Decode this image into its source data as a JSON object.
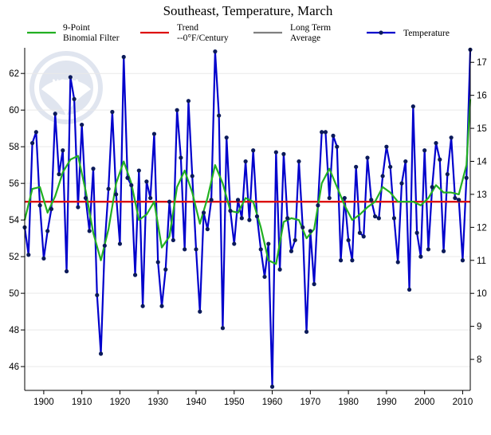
{
  "chart_data": {
    "type": "line",
    "title": "Southeast, Temperature, March",
    "xlabel": "",
    "ylabel": "",
    "xlim": [
      1895,
      2012
    ],
    "ylim": [
      44.7,
      63.4
    ],
    "y2lim": [
      7.06,
      17.44
    ],
    "x_ticks": [
      1900,
      1910,
      1920,
      1930,
      1940,
      1950,
      1960,
      1970,
      1980,
      1990,
      2000,
      2010
    ],
    "y_ticks": [
      46,
      48,
      50,
      52,
      54,
      56,
      58,
      60,
      62
    ],
    "y2_ticks": [
      8,
      9,
      10,
      11,
      12,
      13,
      14,
      15,
      16,
      17
    ],
    "legend": [
      {
        "label_line1": "9-Point",
        "label_line2": "Binomial Filter",
        "color": "#22b022"
      },
      {
        "label_line1": "Trend",
        "label_line2": "--0°F/Century",
        "color": "#dd1111"
      },
      {
        "label_line1": "Long Term",
        "label_line2": "Average",
        "color": "#808080"
      },
      {
        "label_line1": "Temperature",
        "label_line2": "",
        "color": "#0000cc"
      }
    ],
    "trend_value": 55.0,
    "long_term_average": 55.0,
    "series": [
      {
        "name": "Temperature",
        "color": "#0000cc",
        "x": [
          1895,
          1896,
          1897,
          1898,
          1899,
          1900,
          1901,
          1902,
          1903,
          1904,
          1905,
          1906,
          1907,
          1908,
          1909,
          1910,
          1911,
          1912,
          1913,
          1914,
          1915,
          1916,
          1917,
          1918,
          1919,
          1920,
          1921,
          1922,
          1923,
          1924,
          1925,
          1926,
          1927,
          1928,
          1929,
          1930,
          1931,
          1932,
          1933,
          1934,
          1935,
          1936,
          1937,
          1938,
          1939,
          1940,
          1941,
          1942,
          1943,
          1944,
          1945,
          1946,
          1947,
          1948,
          1949,
          1950,
          1951,
          1952,
          1953,
          1954,
          1955,
          1956,
          1957,
          1958,
          1959,
          1960,
          1961,
          1962,
          1963,
          1964,
          1965,
          1966,
          1967,
          1968,
          1969,
          1970,
          1971,
          1972,
          1973,
          1974,
          1975,
          1976,
          1977,
          1978,
          1979,
          1980,
          1981,
          1982,
          1983,
          1984,
          1985,
          1986,
          1987,
          1988,
          1989,
          1990,
          1991,
          1992,
          1993,
          1994,
          1995,
          1996,
          1997,
          1998,
          1999,
          2000,
          2001,
          2002,
          2003,
          2004,
          2005,
          2006,
          2007,
          2008,
          2009,
          2010,
          2011,
          2012
        ],
        "values": [
          53.6,
          52.1,
          58.2,
          58.8,
          54.8,
          51.9,
          53.4,
          54.6,
          59.8,
          56.5,
          57.8,
          51.2,
          61.8,
          60.6,
          54.7,
          59.2,
          55.2,
          53.4,
          56.8,
          49.9,
          46.7,
          52.6,
          55.7,
          59.9,
          55.4,
          52.7,
          62.9,
          56.3,
          55.9,
          51.0,
          56.7,
          49.3,
          56.1,
          55.2,
          58.7,
          51.7,
          49.3,
          51.3,
          55.0,
          52.9,
          60.0,
          57.4,
          52.4,
          60.5,
          56.4,
          52.4,
          49.0,
          54.4,
          53.5,
          55.1,
          63.2,
          59.7,
          48.1,
          58.5,
          54.5,
          52.7,
          55.1,
          54.1,
          57.2,
          54.0,
          57.8,
          54.2,
          52.4,
          50.9,
          52.7,
          44.9,
          57.7,
          51.3,
          57.6,
          54.1,
          52.3,
          52.9,
          57.2,
          53.6,
          47.9,
          53.4,
          50.5,
          54.8,
          58.8,
          58.8,
          55.2,
          58.6,
          58.0,
          51.8,
          55.2,
          52.9,
          51.8,
          56.9,
          53.3,
          53.1,
          57.4,
          55.1,
          54.2,
          54.1,
          56.4,
          58.0,
          56.9,
          54.1,
          51.7,
          56.0,
          57.2,
          50.2,
          60.2,
          53.3,
          52.0,
          57.8,
          52.4,
          55.8,
          58.2,
          57.3,
          52.3,
          56.5,
          58.5,
          55.2,
          55.1,
          51.8,
          56.3,
          63.3
        ]
      },
      {
        "name": "9-Point Binomial Filter",
        "color": "#22b022",
        "x": [
          1895,
          1897,
          1899,
          1901,
          1903,
          1905,
          1907,
          1909,
          1911,
          1913,
          1915,
          1917,
          1919,
          1921,
          1923,
          1925,
          1927,
          1929,
          1931,
          1933,
          1935,
          1937,
          1939,
          1941,
          1943,
          1945,
          1947,
          1949,
          1951,
          1953,
          1955,
          1957,
          1959,
          1961,
          1963,
          1965,
          1967,
          1969,
          1971,
          1973,
          1975,
          1977,
          1979,
          1981,
          1983,
          1985,
          1987,
          1989,
          1991,
          1993,
          1995,
          1997,
          1999,
          2001,
          2003,
          2005,
          2007,
          2009,
          2011,
          2012
        ],
        "values": [
          54.0,
          55.7,
          55.8,
          54.4,
          55.3,
          56.6,
          57.3,
          57.5,
          55.6,
          53.3,
          51.8,
          53.5,
          56.0,
          57.2,
          56.0,
          54.0,
          54.3,
          55.0,
          52.5,
          53.1,
          55.8,
          56.7,
          55.5,
          53.8,
          55.2,
          57.0,
          56.0,
          54.5,
          54.4,
          55.2,
          55.0,
          53.6,
          51.8,
          51.6,
          53.9,
          54.1,
          54.0,
          53.0,
          53.5,
          56.0,
          56.8,
          55.8,
          54.8,
          54.0,
          54.3,
          54.7,
          55.0,
          55.8,
          55.5,
          55.0,
          55.0,
          55.0,
          54.8,
          55.2,
          55.9,
          55.5,
          55.5,
          55.4,
          57.0,
          60.6
        ]
      }
    ]
  },
  "logo_text": "NOAA"
}
